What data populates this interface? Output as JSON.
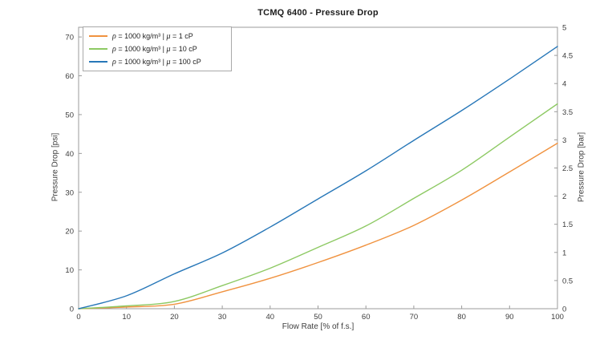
{
  "window": {
    "background": "#ffffff"
  },
  "chart_data": {
    "type": "line",
    "title": "TCMQ 6400 - Pressure Drop",
    "xlabel": "Flow Rate [% of f.s.]",
    "ylabel_left": "Pressure Drop [psi]",
    "ylabel_right": "Pressure Drop [bar]",
    "xlim": [
      0,
      100
    ],
    "ylim_left_psi": [
      0,
      72.5
    ],
    "ylim_right_bar": [
      0,
      5
    ],
    "xticks": [
      0,
      10,
      20,
      30,
      40,
      50,
      60,
      70,
      80,
      90,
      100
    ],
    "yticks_left": [
      0,
      10,
      20,
      30,
      40,
      50,
      60,
      70
    ],
    "yticks_right": [
      0,
      0.5,
      1,
      1.5,
      2,
      2.5,
      3,
      3.5,
      4,
      4.5,
      5
    ],
    "grid": false,
    "legend_position": "top-left",
    "axis_color": "#9b9b9b",
    "x": [
      0,
      10,
      20,
      30,
      40,
      50,
      60,
      70,
      80,
      90,
      100
    ],
    "series": [
      {
        "name": "ρ = 1000 kg/m³ | μ = 1 cP",
        "color": "#f0923f",
        "values_psi": [
          0,
          0.4,
          1.2,
          4.3,
          7.8,
          11.9,
          16.4,
          21.5,
          28.0,
          35.2,
          42.6
        ],
        "values_bar": [
          0,
          0.03,
          0.08,
          0.3,
          0.54,
          0.82,
          1.13,
          1.48,
          1.93,
          2.43,
          2.94
        ]
      },
      {
        "name": "ρ = 1000 kg/m³ | μ = 10 cP",
        "color": "#8dc963",
        "values_psi": [
          0,
          0.7,
          1.9,
          6.0,
          10.5,
          15.8,
          21.3,
          28.4,
          35.7,
          44.2,
          52.8
        ],
        "values_bar": [
          0,
          0.05,
          0.13,
          0.41,
          0.72,
          1.09,
          1.47,
          1.96,
          2.46,
          3.05,
          3.64
        ]
      },
      {
        "name": "ρ = 1000 kg/m³ | μ = 100 cP",
        "color": "#2777b8",
        "values_psi": [
          0,
          3.4,
          9.0,
          14.4,
          21.1,
          28.3,
          35.5,
          43.4,
          51.0,
          59.1,
          67.6
        ],
        "values_bar": [
          0,
          0.23,
          0.62,
          0.99,
          1.45,
          1.95,
          2.45,
          2.99,
          3.52,
          4.08,
          4.66
        ]
      }
    ]
  }
}
